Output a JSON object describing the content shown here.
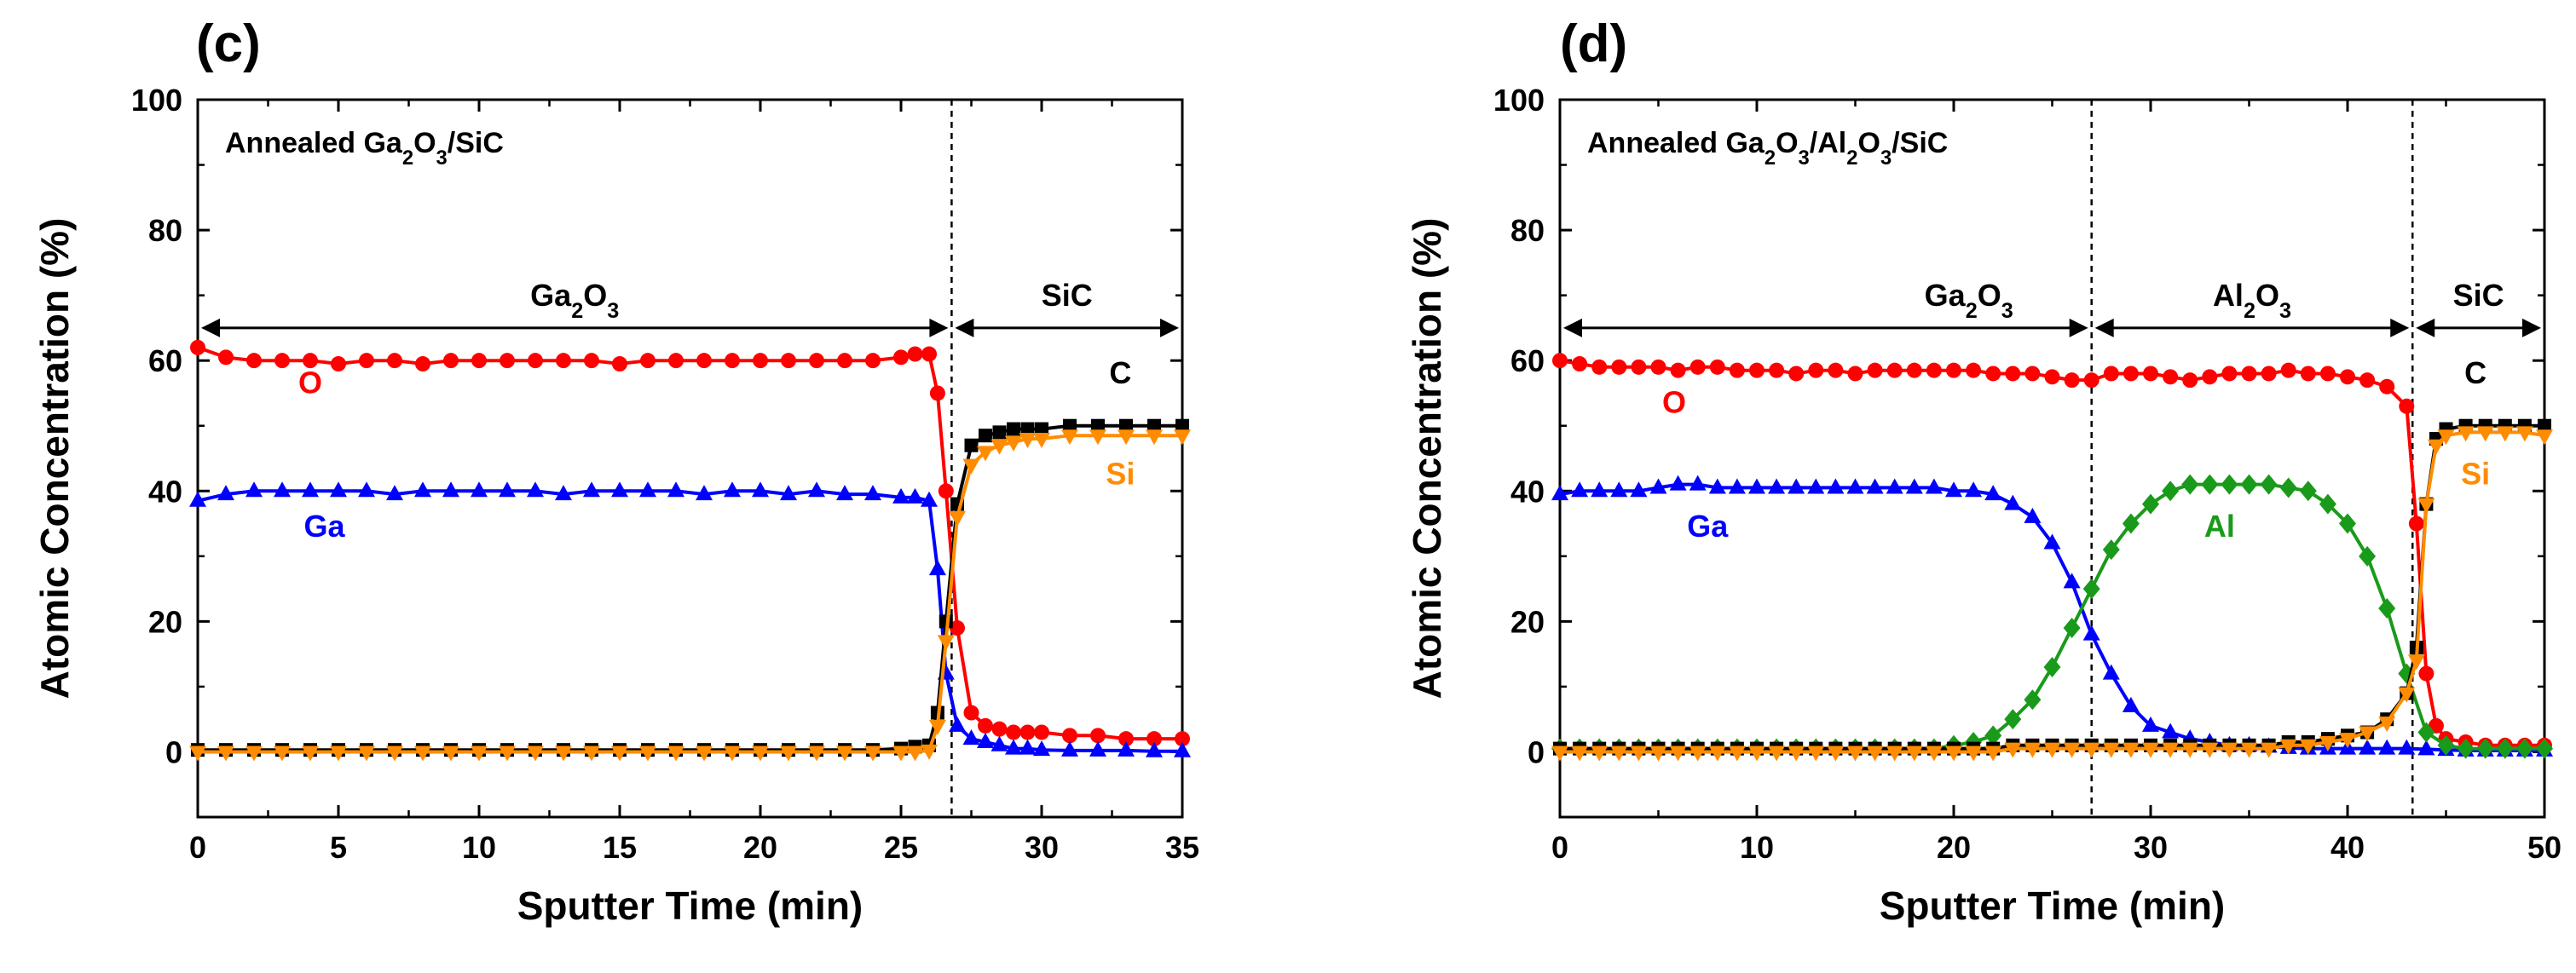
{
  "chart_data": [
    {
      "type": "line",
      "panel": "(c)",
      "title": "",
      "annotation": {
        "prefix": "Annealed Ga",
        "sub1": "2",
        "mid": "O",
        "sub2": "3",
        "suffix": "/SiC"
      },
      "xlabel": "Sputter Time (min)",
      "ylabel": "Atomic Concentration (%)",
      "xlim": [
        0,
        35
      ],
      "ylim": [
        -10,
        100
      ],
      "xticks": [
        0,
        5,
        10,
        15,
        20,
        25,
        30,
        35
      ],
      "yticks": [
        0,
        20,
        40,
        60,
        80,
        100
      ],
      "boundaries": [
        26.8
      ],
      "regions": [
        {
          "base": "Ga",
          "s1": "2",
          "mid": "O",
          "s2": "3",
          "from": 0,
          "to": 26.8
        },
        {
          "base": "SiC",
          "s1": "",
          "mid": "",
          "s2": "",
          "from": 26.8,
          "to": 35
        }
      ],
      "series": [
        {
          "name": "O",
          "color": "#ff0000",
          "marker": "circle",
          "label_x": 4,
          "label_y": 55,
          "x": [
            0,
            1,
            2,
            3,
            4,
            5,
            6,
            7,
            8,
            9,
            10,
            11,
            12,
            13,
            14,
            15,
            16,
            17,
            18,
            19,
            20,
            21,
            22,
            23,
            24,
            25,
            25.5,
            26,
            26.3,
            26.6,
            27,
            27.5,
            28,
            28.5,
            29,
            29.5,
            30,
            31,
            32,
            33,
            34,
            35
          ],
          "y": [
            62,
            60.5,
            60,
            60,
            60,
            59.5,
            60,
            60,
            59.5,
            60,
            60,
            60,
            60,
            60,
            60,
            59.5,
            60,
            60,
            60,
            60,
            60,
            60,
            60,
            60,
            60,
            60.5,
            61,
            61,
            55,
            40,
            19,
            6,
            4,
            3.5,
            3,
            3,
            3,
            2.5,
            2.5,
            2,
            2,
            2
          ]
        },
        {
          "name": "Ga",
          "color": "#0000ff",
          "marker": "triangle",
          "label_x": 4.5,
          "label_y": 33,
          "x": [
            0,
            1,
            2,
            3,
            4,
            5,
            6,
            7,
            8,
            9,
            10,
            11,
            12,
            13,
            14,
            15,
            16,
            17,
            18,
            19,
            20,
            21,
            22,
            23,
            24,
            25,
            25.5,
            26,
            26.3,
            26.6,
            27,
            27.5,
            28,
            28.5,
            29,
            29.5,
            30,
            31,
            32,
            33,
            34,
            35
          ],
          "y": [
            38.5,
            39.5,
            40,
            40,
            40,
            40,
            40,
            39.5,
            40,
            40,
            40,
            40,
            40,
            39.5,
            40,
            40,
            40,
            40,
            39.5,
            40,
            40,
            39.5,
            40,
            39.5,
            39.5,
            39,
            39,
            38.5,
            28,
            12,
            4,
            2,
            1.5,
            1,
            0.5,
            0.5,
            0.3,
            0.2,
            0.2,
            0.2,
            0.1,
            0.1
          ]
        },
        {
          "name": "C",
          "color": "#000000",
          "marker": "square",
          "label_x": 32.8,
          "label_y": 56.5,
          "x": [
            0,
            1,
            2,
            3,
            4,
            5,
            6,
            7,
            8,
            9,
            10,
            11,
            12,
            13,
            14,
            15,
            16,
            17,
            18,
            19,
            20,
            21,
            22,
            23,
            24,
            25,
            25.5,
            26,
            26.3,
            26.6,
            27,
            27.5,
            28,
            28.5,
            29,
            29.5,
            30,
            31,
            32,
            33,
            34,
            35
          ],
          "y": [
            0.3,
            0.3,
            0.3,
            0.3,
            0.3,
            0.3,
            0.3,
            0.3,
            0.3,
            0.3,
            0.3,
            0.3,
            0.3,
            0.3,
            0.3,
            0.3,
            0.3,
            0.3,
            0.3,
            0.3,
            0.3,
            0.3,
            0.3,
            0.3,
            0.3,
            0.5,
            0.8,
            1,
            6,
            20,
            38,
            47,
            48.5,
            49,
            49.5,
            49.5,
            49.5,
            50,
            50,
            50,
            50,
            50
          ]
        },
        {
          "name": "Si",
          "color": "#ff8c00",
          "marker": "triangle-down",
          "label_x": 32.8,
          "label_y": 41,
          "x": [
            0,
            1,
            2,
            3,
            4,
            5,
            6,
            7,
            8,
            9,
            10,
            11,
            12,
            13,
            14,
            15,
            16,
            17,
            18,
            19,
            20,
            21,
            22,
            23,
            24,
            25,
            25.5,
            26,
            26.3,
            26.6,
            27,
            27.5,
            28,
            28.5,
            29,
            29.5,
            30,
            31,
            32,
            33,
            34,
            35
          ],
          "y": [
            0,
            0,
            0,
            0,
            0,
            0,
            0,
            0,
            0,
            0,
            0,
            0,
            0,
            0,
            0,
            0,
            0,
            0,
            0,
            0,
            0,
            0,
            0,
            0,
            0,
            0,
            0,
            0.2,
            4,
            17,
            36,
            44,
            46,
            47,
            47.5,
            48,
            48,
            48.5,
            48.5,
            48.5,
            48.5,
            48.5
          ]
        }
      ]
    },
    {
      "type": "line",
      "panel": "(d)",
      "title": "",
      "annotation": {
        "prefix": "Annealed Ga",
        "sub1": "2",
        "mid": "O",
        "sub2": "3",
        "mid2": "/Al",
        "sub3": "2",
        "mid3": "O",
        "sub4": "3",
        "suffix": "/SiC"
      },
      "xlabel": "Sputter Time (min)",
      "ylabel": "Atomic Concentration (%)",
      "xlim": [
        0,
        50
      ],
      "ylim": [
        -10,
        100
      ],
      "xticks": [
        0,
        10,
        20,
        30,
        40,
        50
      ],
      "yticks": [
        0,
        20,
        40,
        60,
        80,
        100
      ],
      "boundaries": [
        27,
        43.3
      ],
      "regions": [
        {
          "base": "Ga",
          "s1": "2",
          "mid": "O",
          "s2": "3",
          "from": 0,
          "to": 27
        },
        {
          "base": "Al",
          "s1": "2",
          "mid": "O",
          "s2": "3",
          "from": 27,
          "to": 43.3
        },
        {
          "base": "SiC",
          "s1": "",
          "mid": "",
          "s2": "",
          "from": 43.3,
          "to": 50
        }
      ],
      "series": [
        {
          "name": "O",
          "color": "#ff0000",
          "marker": "circle",
          "label_x": 5.8,
          "label_y": 52,
          "x": [
            0,
            1,
            2,
            3,
            4,
            5,
            6,
            7,
            8,
            9,
            10,
            11,
            12,
            13,
            14,
            15,
            16,
            17,
            18,
            19,
            20,
            21,
            22,
            23,
            24,
            25,
            26,
            27,
            28,
            29,
            30,
            31,
            32,
            33,
            34,
            35,
            36,
            37,
            38,
            39,
            40,
            41,
            42,
            43,
            43.5,
            44,
            44.5,
            45,
            46,
            47,
            48,
            49,
            50
          ],
          "y": [
            60,
            59.5,
            59,
            59,
            59,
            59,
            58.5,
            59,
            59,
            58.5,
            58.5,
            58.5,
            58,
            58.5,
            58.5,
            58,
            58.5,
            58.5,
            58.5,
            58.5,
            58.5,
            58.5,
            58,
            58,
            58,
            57.5,
            57,
            57,
            58,
            58,
            58,
            57.5,
            57,
            57.5,
            58,
            58,
            58,
            58.5,
            58,
            58,
            57.5,
            57,
            56,
            53,
            35,
            12,
            4,
            2,
            1.5,
            1,
            1,
            1,
            1
          ]
        },
        {
          "name": "Ga",
          "color": "#0000ff",
          "marker": "triangle",
          "label_x": 7.5,
          "label_y": 33,
          "x": [
            0,
            1,
            2,
            3,
            4,
            5,
            6,
            7,
            8,
            9,
            10,
            11,
            12,
            13,
            14,
            15,
            16,
            17,
            18,
            19,
            20,
            21,
            22,
            23,
            24,
            25,
            26,
            27,
            28,
            29,
            30,
            31,
            32,
            33,
            34,
            35,
            36,
            37,
            38,
            39,
            40,
            41,
            42,
            43,
            44,
            45,
            46,
            47,
            48,
            49,
            50
          ],
          "y": [
            39.5,
            40,
            40,
            40,
            40,
            40.5,
            41,
            41,
            40.5,
            40.5,
            40.5,
            40.5,
            40.5,
            40.5,
            40.5,
            40.5,
            40.5,
            40.5,
            40.5,
            40.5,
            40,
            40,
            39.5,
            38,
            36,
            32,
            26,
            18,
            12,
            7,
            4,
            3,
            2,
            1.5,
            1,
            1,
            0.8,
            0.6,
            0.5,
            0.5,
            0.5,
            0.5,
            0.5,
            0.5,
            0.4,
            0.3,
            0.2,
            0.2,
            0.2,
            0.2,
            0.2
          ]
        },
        {
          "name": "Al",
          "color": "#1a9a1a",
          "marker": "diamond",
          "label_x": 33.5,
          "label_y": 33,
          "x": [
            0,
            1,
            2,
            3,
            4,
            5,
            6,
            7,
            8,
            9,
            10,
            11,
            12,
            13,
            14,
            15,
            16,
            17,
            18,
            19,
            20,
            21,
            22,
            23,
            24,
            25,
            26,
            27,
            28,
            29,
            30,
            31,
            32,
            33,
            34,
            35,
            36,
            37,
            38,
            39,
            40,
            41,
            42,
            43,
            44,
            45,
            46,
            47,
            48,
            49,
            50
          ],
          "y": [
            0.5,
            0.5,
            0.5,
            0.5,
            0.5,
            0.5,
            0.5,
            0.5,
            0.5,
            0.5,
            0.5,
            0.5,
            0.5,
            0.5,
            0.5,
            0.5,
            0.5,
            0.5,
            0.5,
            0.5,
            1,
            1.5,
            2.5,
            5,
            8,
            13,
            19,
            25,
            31,
            35,
            38,
            40,
            41,
            41,
            41,
            41,
            41,
            40.5,
            40,
            38,
            35,
            30,
            22,
            12,
            3,
            1,
            0.5,
            0.5,
            0.5,
            0.5,
            0.5
          ]
        },
        {
          "name": "C",
          "color": "#000000",
          "marker": "square",
          "label_x": 46.5,
          "label_y": 56.5,
          "x": [
            0,
            1,
            2,
            3,
            4,
            5,
            6,
            7,
            8,
            9,
            10,
            11,
            12,
            13,
            14,
            15,
            16,
            17,
            18,
            19,
            20,
            21,
            22,
            23,
            24,
            25,
            26,
            27,
            28,
            29,
            30,
            31,
            32,
            33,
            34,
            35,
            36,
            37,
            38,
            39,
            40,
            41,
            42,
            43,
            43.5,
            44,
            44.5,
            45,
            46,
            47,
            48,
            49,
            50
          ],
          "y": [
            0.5,
            0.5,
            0.5,
            0.5,
            0.5,
            0.5,
            0.5,
            0.5,
            0.5,
            0.5,
            0.5,
            0.5,
            0.5,
            0.5,
            0.5,
            0.5,
            0.5,
            0.5,
            0.5,
            0.5,
            0.5,
            0.5,
            0.5,
            1,
            1,
            1,
            1,
            1,
            1,
            1,
            1,
            1,
            1,
            1,
            1,
            1,
            1,
            1.5,
            1.5,
            2,
            2.5,
            3,
            5,
            9,
            16,
            38,
            48,
            49.5,
            50,
            50,
            50,
            50,
            50
          ]
        },
        {
          "name": "Si",
          "color": "#ff8c00",
          "marker": "triangle-down",
          "label_x": 46.5,
          "label_y": 41,
          "x": [
            0,
            1,
            2,
            3,
            4,
            5,
            6,
            7,
            8,
            9,
            10,
            11,
            12,
            13,
            14,
            15,
            16,
            17,
            18,
            19,
            20,
            21,
            22,
            23,
            24,
            25,
            26,
            27,
            28,
            29,
            30,
            31,
            32,
            33,
            34,
            35,
            36,
            37,
            38,
            39,
            40,
            41,
            42,
            43,
            43.5,
            44,
            44.5,
            45,
            46,
            47,
            48,
            49,
            50
          ],
          "y": [
            0,
            0,
            0,
            0,
            0,
            0,
            0,
            0,
            0,
            0,
            0,
            0,
            0,
            0,
            0,
            0,
            0,
            0,
            0,
            0,
            0,
            0,
            0,
            0.5,
            0.5,
            0.5,
            0.5,
            0.5,
            0.5,
            0.5,
            0.5,
            0.5,
            0.5,
            0.5,
            0.5,
            0.5,
            0.5,
            1,
            1,
            1.5,
            2,
            3,
            4.5,
            9,
            14,
            38,
            47,
            48.5,
            49,
            49,
            49,
            49,
            48.5
          ]
        }
      ]
    }
  ]
}
